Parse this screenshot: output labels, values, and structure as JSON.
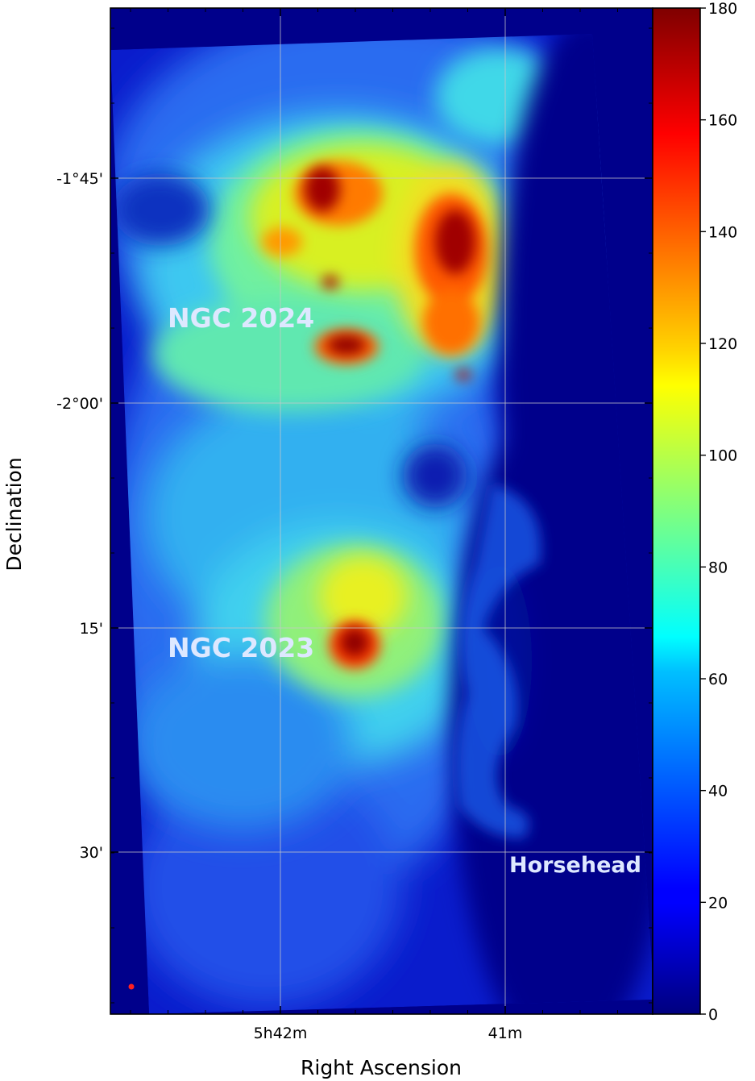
{
  "chart_data": {
    "type": "heatmap",
    "title": "",
    "xlabel": "Right Ascension",
    "ylabel": "Declination",
    "x_ticks": [
      {
        "label": "5h42m",
        "value": "5h42m"
      },
      {
        "label": "41m",
        "value": "5h41m"
      }
    ],
    "y_ticks": [
      {
        "label": "-1°45'",
        "value": "-1°45'"
      },
      {
        "label": "-2°00'",
        "value": "-2°00'"
      },
      {
        "label": "15'",
        "value": "-2°15'"
      },
      {
        "label": "30'",
        "value": "-2°30'"
      }
    ],
    "colorbar": {
      "min": 0,
      "max": 180,
      "ticks": [
        0,
        20,
        40,
        60,
        80,
        100,
        120,
        140,
        160,
        180
      ],
      "colormap": "jet"
    },
    "grid": true,
    "annotations": [
      {
        "text": "NGC 2024"
      },
      {
        "text": "NGC 2023"
      },
      {
        "text": "Horsehead"
      }
    ],
    "background_color": "#00008b",
    "beam_marker_color": "#ff2020"
  }
}
